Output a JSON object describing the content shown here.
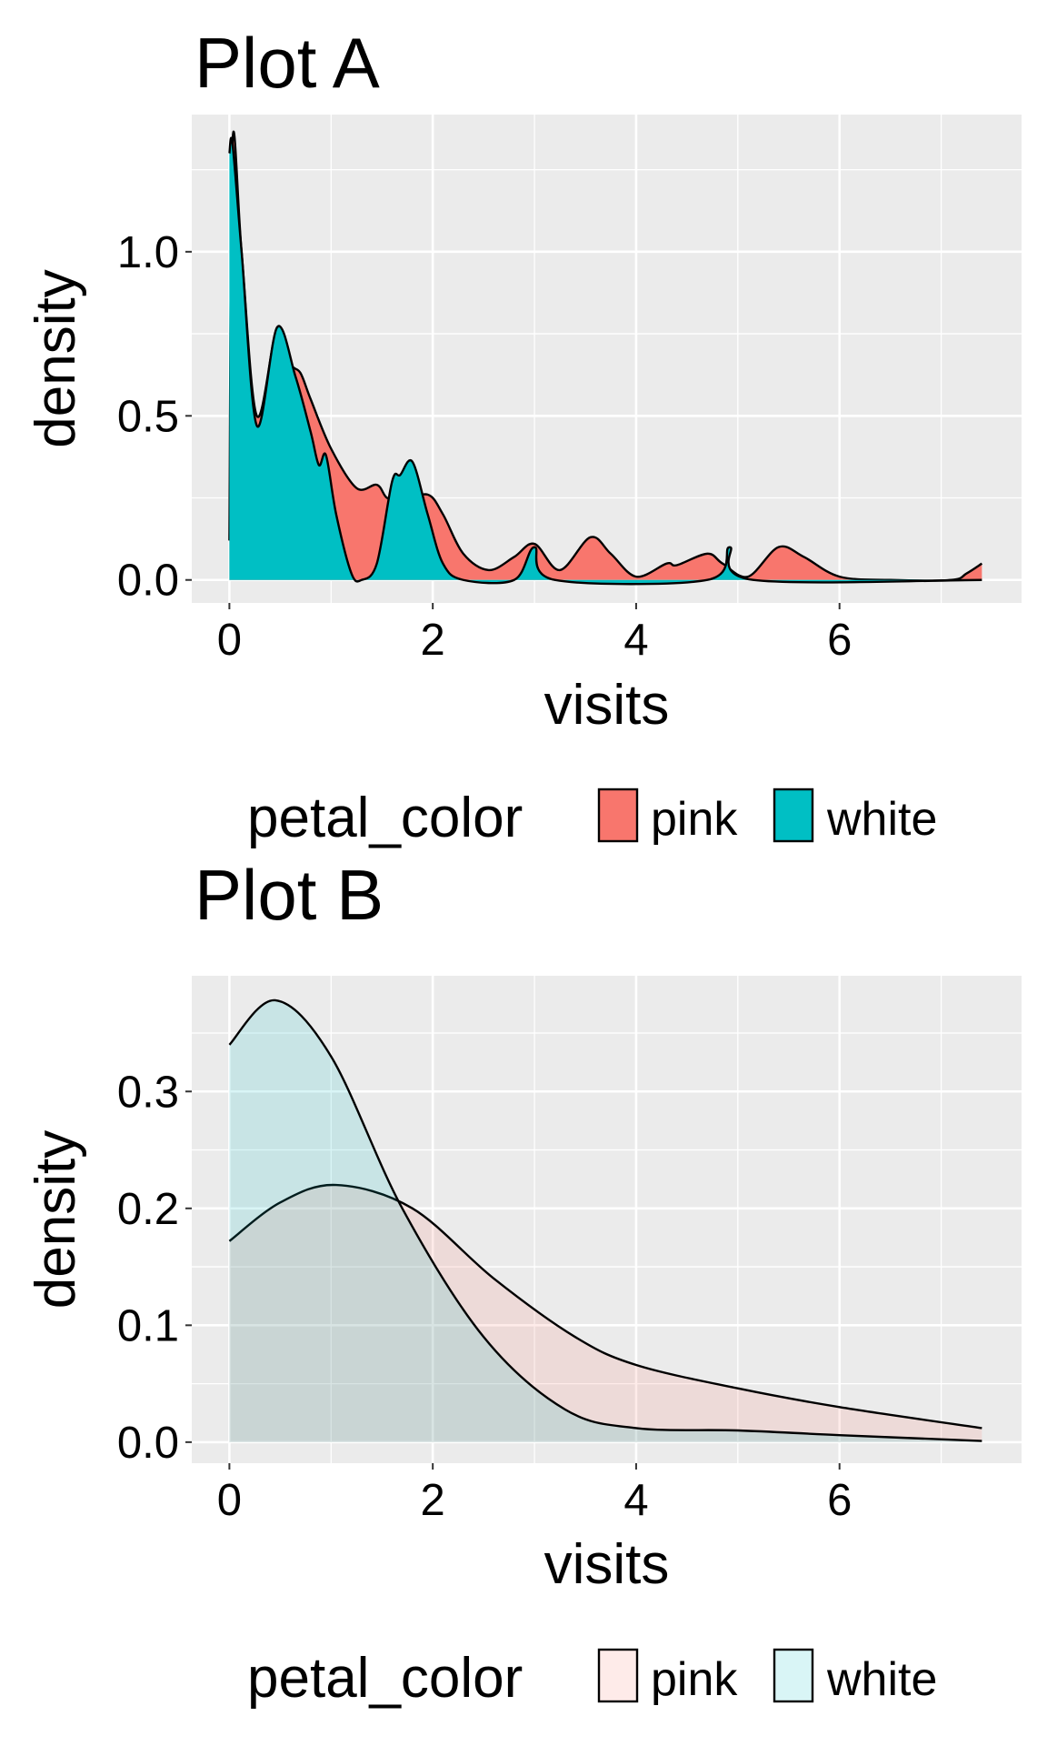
{
  "chart_data": [
    {
      "type": "area",
      "title": "Plot A",
      "xlabel": "visits",
      "ylabel": "density",
      "xlim": [
        -0.37,
        7.79
      ],
      "ylim": [
        -0.07,
        1.418
      ],
      "xticks": [
        0,
        2,
        4,
        6
      ],
      "yticks": [
        0.0,
        0.5,
        1.0
      ],
      "xtick_labels": [
        "0",
        "2",
        "4",
        "6"
      ],
      "ytick_labels": [
        "0.0",
        "0.5",
        "1.0"
      ],
      "grid": true,
      "legend": {
        "title": "petal_color",
        "placement": "bottom",
        "entries": [
          "pink",
          "white"
        ]
      },
      "fill_alpha": 1,
      "series": [
        {
          "name": "pink",
          "color": "#F8766D",
          "points": [
            [
              0,
              0.12
            ],
            [
              0.03,
              1.33
            ],
            [
              0.12,
              1.0
            ],
            [
              0.27,
              0.5
            ],
            [
              0.47,
              0.77
            ],
            [
              0.6,
              0.66
            ],
            [
              0.7,
              0.63
            ],
            [
              0.8,
              0.55
            ],
            [
              1.0,
              0.4
            ],
            [
              1.25,
              0.28
            ],
            [
              1.45,
              0.29
            ],
            [
              1.55,
              0.25
            ],
            [
              1.7,
              0.24
            ],
            [
              1.95,
              0.26
            ],
            [
              2.1,
              0.2
            ],
            [
              2.3,
              0.08
            ],
            [
              2.55,
              0.03
            ],
            [
              2.8,
              0.07
            ],
            [
              3.0,
              0.11
            ],
            [
              3.25,
              0.03
            ],
            [
              3.55,
              0.13
            ],
            [
              3.75,
              0.08
            ],
            [
              4.0,
              0.01
            ],
            [
              4.3,
              0.05
            ],
            [
              4.4,
              0.045
            ],
            [
              4.7,
              0.08
            ],
            [
              4.85,
              0.05
            ],
            [
              5.1,
              0.01
            ],
            [
              5.4,
              0.1
            ],
            [
              5.65,
              0.07
            ],
            [
              6.0,
              0.01
            ],
            [
              6.5,
              0.0
            ],
            [
              7.1,
              0.0
            ],
            [
              7.25,
              0.02
            ],
            [
              7.4,
              0.05
            ]
          ]
        },
        {
          "name": "white",
          "color": "#00BFC4",
          "points": [
            [
              0,
              1.3
            ],
            [
              0.03,
              1.33
            ],
            [
              0.12,
              1.0
            ],
            [
              0.27,
              0.47
            ],
            [
              0.47,
              0.77
            ],
            [
              0.65,
              0.62
            ],
            [
              0.8,
              0.45
            ],
            [
              0.88,
              0.35
            ],
            [
              0.95,
              0.38
            ],
            [
              1.05,
              0.2
            ],
            [
              1.2,
              0.02
            ],
            [
              1.3,
              0.0
            ],
            [
              1.45,
              0.05
            ],
            [
              1.6,
              0.3
            ],
            [
              1.68,
              0.32
            ],
            [
              1.8,
              0.36
            ],
            [
              1.95,
              0.2
            ],
            [
              2.1,
              0.05
            ],
            [
              2.3,
              0.0
            ],
            [
              2.8,
              0.0
            ],
            [
              3.0,
              0.1
            ],
            [
              3.2,
              0.0
            ],
            [
              4.7,
              0.0
            ],
            [
              4.92,
              0.1
            ],
            [
              5.15,
              0.0
            ],
            [
              7.4,
              0.0
            ]
          ]
        }
      ]
    },
    {
      "type": "area",
      "title": "Plot B",
      "xlabel": "visits",
      "ylabel": "density",
      "xlim": [
        -0.37,
        7.79
      ],
      "ylim": [
        -0.018,
        0.399
      ],
      "xticks": [
        0,
        2,
        4,
        6
      ],
      "yticks": [
        0.0,
        0.1,
        0.2,
        0.3
      ],
      "xtick_labels": [
        "0",
        "2",
        "4",
        "6"
      ],
      "ytick_labels": [
        "0.0",
        "0.1",
        "0.2",
        "0.3"
      ],
      "grid": true,
      "legend": {
        "title": "petal_color",
        "placement": "bottom",
        "entries": [
          "pink",
          "white"
        ]
      },
      "fill_alpha": 0.15,
      "series": [
        {
          "name": "pink",
          "color": "#F8766D",
          "points": [
            [
              0,
              0.172
            ],
            [
              0.5,
              0.205
            ],
            [
              1.05,
              0.22
            ],
            [
              1.8,
              0.2
            ],
            [
              2.6,
              0.14
            ],
            [
              3.4,
              0.09
            ],
            [
              4.0,
              0.066
            ],
            [
              5.0,
              0.046
            ],
            [
              6.0,
              0.03
            ],
            [
              7.4,
              0.012
            ]
          ]
        },
        {
          "name": "white",
          "color": "#00BFC4",
          "points": [
            [
              0,
              0.34
            ],
            [
              0.45,
              0.378
            ],
            [
              1.0,
              0.33
            ],
            [
              1.7,
              0.2
            ],
            [
              2.5,
              0.09
            ],
            [
              3.3,
              0.028
            ],
            [
              4.0,
              0.012
            ],
            [
              5.0,
              0.01
            ],
            [
              6.0,
              0.006
            ],
            [
              7.4,
              0.001
            ]
          ]
        }
      ]
    }
  ]
}
